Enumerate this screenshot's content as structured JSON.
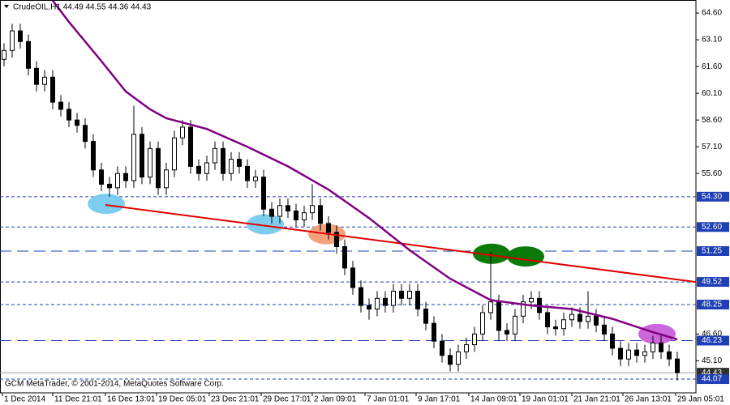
{
  "chart_data": {
    "type": "candlestick",
    "title": "CrudeOIL,H1 44.49 44.55 44.36 44.43",
    "footer": "GCM MetaTrader, © 2001-2014, MetaQuotes Software Corp.",
    "xlim": [
      -0.5,
      85.3
    ],
    "xticks": [
      {
        "value": -0.2,
        "label": "1 Dec 2014"
      },
      {
        "value": 6,
        "label": "11 Dec 21:01"
      },
      {
        "value": 12.5,
        "label": "16 Dec 13:01"
      },
      {
        "value": 18.8,
        "label": "19 Dec 05:01"
      },
      {
        "value": 25.3,
        "label": "23 Dec 21:01"
      },
      {
        "value": 31.7,
        "label": "29 Dec 17:01"
      },
      {
        "value": 38,
        "label": "2 Jan 09:01"
      },
      {
        "value": 44.5,
        "label": "7 Jan 01:01"
      },
      {
        "value": 50.8,
        "label": "9 Jan 17:01"
      },
      {
        "value": 57.3,
        "label": "14 Jan 09:01"
      },
      {
        "value": 63.6,
        "label": "19 Jan 01:01"
      },
      {
        "value": 70,
        "label": "21 Jan 21:01"
      },
      {
        "value": 76.3,
        "label": "26 Jan 13:01"
      },
      {
        "value": 82.8,
        "label": "29 Jan 05:01"
      }
    ],
    "ylim": [
      43.3,
      65.33
    ],
    "yticks": [
      {
        "value": 64.6,
        "label": "64.60"
      },
      {
        "value": 63.1,
        "label": "63.10"
      },
      {
        "value": 61.6,
        "label": "61.60"
      },
      {
        "value": 60.1,
        "label": "60.10"
      },
      {
        "value": 58.6,
        "label": "58.60"
      },
      {
        "value": 57.1,
        "label": "57.10"
      },
      {
        "value": 55.6,
        "label": "55.60"
      },
      {
        "value": 46.6,
        "label": "46.60"
      },
      {
        "value": 45.1,
        "label": "45.10"
      }
    ],
    "up_color": "#ffffff",
    "down_color": "#000000",
    "open": [
      62.0,
      62.5,
      63.6,
      63.0,
      61.5,
      60.6,
      61.0,
      59.6,
      59.2,
      58.6,
      58.3,
      57.4,
      55.8,
      55.0,
      54.8,
      55.6,
      55.2,
      57.8,
      55.4,
      57.0,
      54.8,
      55.8,
      57.6,
      58.2,
      56.0,
      55.6,
      56.2,
      57.0,
      55.6,
      56.4,
      56.0,
      55.2,
      55.4,
      53.6,
      53.2,
      53.8,
      53.5,
      53.0,
      53.4,
      53.8,
      52.8,
      52.3,
      51.5,
      50.3,
      49.2,
      48.2,
      48.0,
      48.6,
      48.2,
      49.0,
      48.6,
      49.0,
      48.0,
      47.2,
      46.2,
      45.4,
      44.9,
      45.6,
      46.0,
      46.6,
      47.8,
      48.4,
      46.8,
      46.6,
      47.6,
      48.4,
      48.6,
      47.8,
      47.0,
      46.9,
      47.4,
      47.7,
      47.3,
      47.6,
      47.1,
      46.6,
      45.8,
      45.2,
      45.7,
      45.4,
      45.6,
      46.1,
      45.6,
      45.2
    ],
    "high": [
      62.9,
      64.0,
      64.0,
      63.4,
      61.9,
      61.4,
      61.4,
      60.0,
      59.6,
      59.0,
      58.7,
      57.8,
      56.2,
      55.4,
      56.0,
      56.0,
      59.4,
      58.2,
      57.4,
      57.4,
      56.2,
      58.0,
      58.6,
      58.6,
      56.4,
      56.6,
      57.4,
      57.4,
      56.8,
      56.8,
      56.4,
      55.8,
      55.8,
      54.0,
      54.2,
      54.2,
      53.9,
      53.8,
      55.0,
      54.2,
      53.2,
      52.7,
      51.9,
      50.7,
      49.6,
      48.6,
      49.0,
      49.0,
      49.4,
      49.4,
      49.4,
      49.4,
      48.4,
      47.6,
      46.6,
      45.8,
      46.0,
      46.4,
      47.0,
      48.2,
      51.2,
      48.8,
      47.2,
      48.0,
      48.8,
      49.0,
      49.0,
      48.2,
      47.4,
      47.8,
      48.1,
      48.1,
      49.0,
      48.0,
      47.5,
      47.0,
      46.2,
      46.1,
      46.1,
      46.0,
      46.5,
      46.5,
      46.0,
      45.6
    ],
    "low": [
      61.6,
      62.1,
      62.6,
      61.1,
      60.2,
      60.2,
      59.2,
      58.8,
      58.2,
      57.9,
      57.0,
      55.4,
      54.6,
      54.3,
      54.4,
      54.8,
      54.8,
      55.0,
      55.0,
      54.4,
      54.4,
      55.4,
      57.2,
      55.6,
      55.2,
      55.2,
      55.8,
      55.2,
      55.2,
      55.6,
      54.8,
      54.8,
      53.2,
      52.8,
      52.8,
      53.1,
      52.6,
      52.6,
      53.0,
      52.4,
      51.9,
      51.1,
      49.9,
      48.8,
      47.8,
      47.4,
      47.6,
      47.8,
      47.8,
      48.2,
      48.2,
      47.6,
      46.8,
      45.8,
      45.0,
      44.5,
      44.5,
      45.2,
      45.6,
      46.2,
      47.4,
      46.2,
      46.2,
      46.2,
      47.2,
      48.0,
      47.4,
      46.6,
      46.5,
      46.5,
      47.0,
      46.9,
      46.9,
      46.7,
      46.2,
      45.4,
      44.8,
      44.8,
      45.0,
      45.0,
      45.2,
      45.2,
      44.8,
      44.0
    ],
    "close": [
      62.5,
      63.6,
      63.0,
      61.5,
      60.6,
      61.0,
      59.6,
      59.2,
      58.6,
      58.3,
      57.4,
      55.8,
      55.0,
      54.8,
      55.6,
      55.2,
      57.8,
      55.4,
      57.0,
      54.8,
      55.8,
      57.6,
      58.2,
      56.0,
      55.6,
      56.2,
      57.0,
      55.6,
      56.4,
      56.0,
      55.2,
      55.4,
      53.6,
      53.2,
      53.8,
      53.5,
      53.0,
      53.4,
      53.8,
      52.8,
      52.3,
      51.5,
      50.3,
      49.2,
      48.2,
      48.0,
      48.6,
      48.2,
      49.0,
      48.6,
      49.0,
      48.0,
      47.2,
      46.2,
      45.4,
      44.9,
      45.6,
      46.0,
      46.6,
      47.8,
      48.4,
      46.8,
      46.6,
      47.6,
      48.4,
      48.6,
      47.8,
      47.0,
      46.9,
      47.4,
      47.7,
      47.3,
      47.6,
      47.1,
      46.6,
      45.8,
      45.2,
      45.7,
      45.4,
      45.6,
      46.1,
      45.6,
      45.2,
      44.43
    ],
    "ma": {
      "color": "#800080",
      "x": [
        6,
        8,
        10,
        12,
        15,
        18,
        20,
        25,
        30,
        35,
        40,
        45,
        50,
        55,
        60,
        65,
        70,
        75,
        80,
        83
      ],
      "values": [
        65.3,
        64.1,
        63.0,
        61.9,
        60.2,
        59.2,
        58.7,
        58.1,
        57.1,
        56.0,
        54.7,
        53.1,
        51.3,
        49.7,
        48.5,
        48.2,
        48.0,
        47.45,
        46.7,
        46.3
      ]
    },
    "trendline": {
      "color": "#e00000",
      "x": [
        12.5,
        85.3
      ],
      "values": [
        53.84,
        49.52
      ]
    },
    "levels": [
      {
        "value": 54.3,
        "label": "54.30",
        "color": "#1f3fb4",
        "style": "dash"
      },
      {
        "value": 52.6,
        "label": "52.60",
        "color": "#1f3fb4",
        "style": "dash"
      },
      {
        "value": 51.25,
        "label": "51.25",
        "color": "#1f3fb4",
        "style": "longdash"
      },
      {
        "value": 49.52,
        "label": "49.52",
        "color": "#1f3fb4",
        "style": "dash"
      },
      {
        "value": 48.25,
        "label": "48.25",
        "color": "#1f3fb4",
        "style": "dash"
      },
      {
        "value": 46.23,
        "label": "46.23",
        "color": "#1f3fb4",
        "style": "longdash"
      },
      {
        "value": 44.43,
        "label": "44.43",
        "color": "#303030",
        "style": "solid"
      },
      {
        "value": 44.07,
        "label": "44.07",
        "color": "#1f3fb4",
        "style": "dash"
      }
    ],
    "highlights": [
      {
        "x": 12.6,
        "y": 53.9,
        "color": "#7fcdee"
      },
      {
        "x": 32.2,
        "y": 52.75,
        "color": "#7fcdee"
      },
      {
        "x": 39.8,
        "y": 52.2,
        "color": "#f4a07a"
      },
      {
        "x": 60.1,
        "y": 51.1,
        "color": "#0a7a0a"
      },
      {
        "x": 64.3,
        "y": 50.95,
        "color": "#0a7a0a"
      },
      {
        "x": 80.5,
        "y": 46.6,
        "color": "#cc66dd"
      }
    ]
  }
}
